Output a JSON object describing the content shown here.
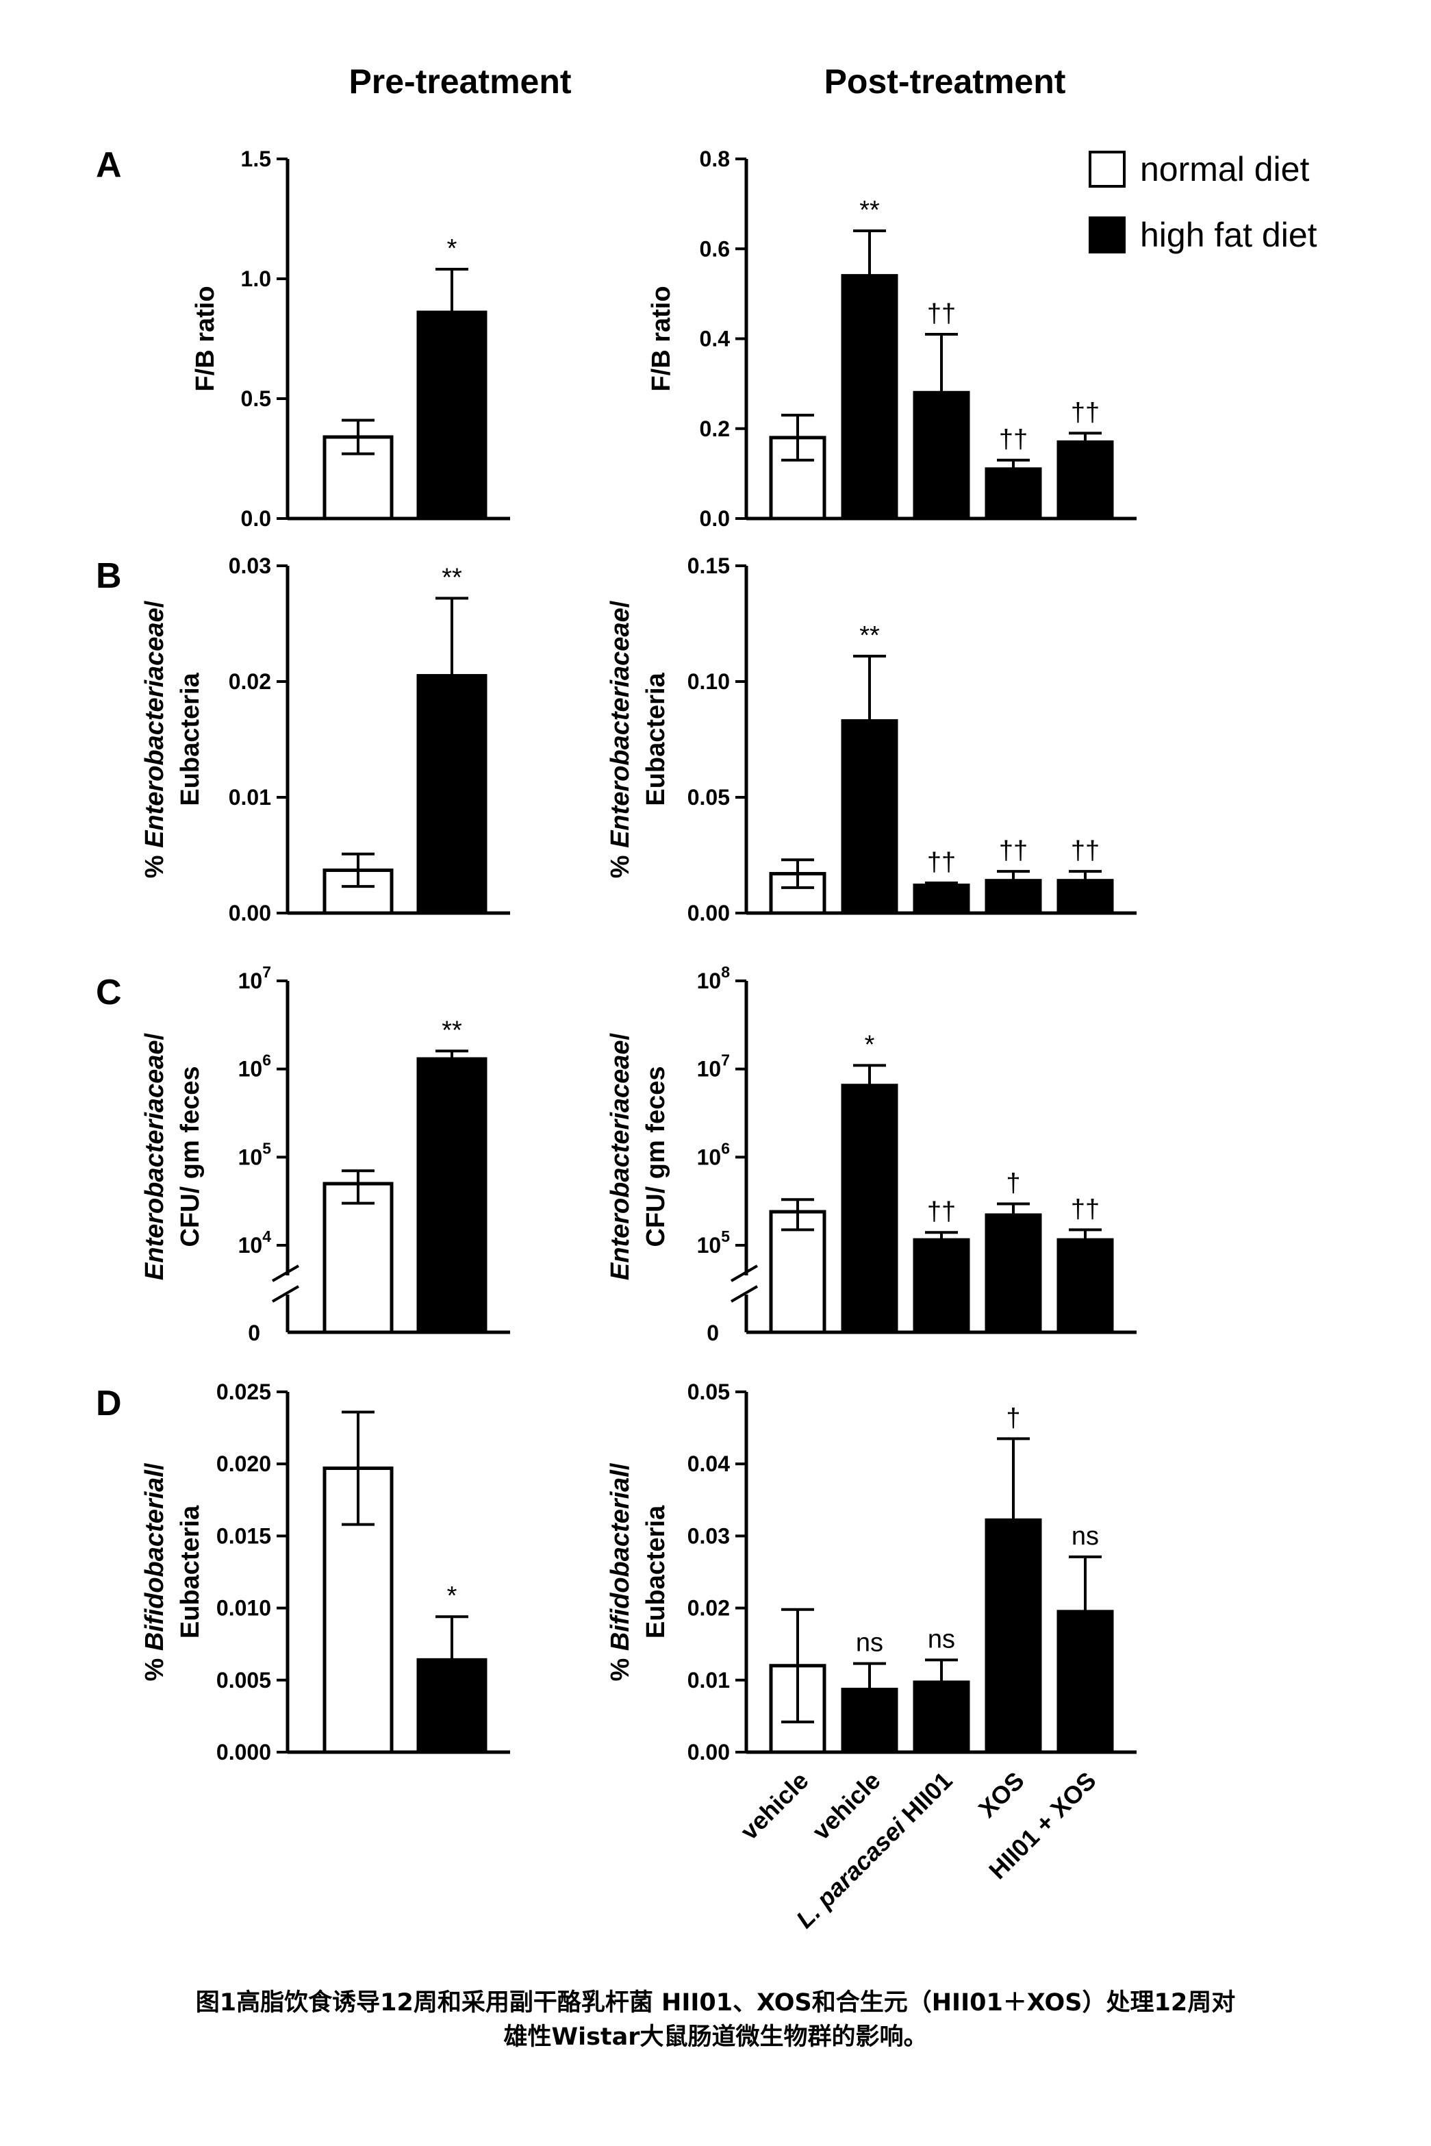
{
  "column_titles": [
    "Pre-treatment",
    "Post-treatment"
  ],
  "legend": [
    {
      "label": "normal diet",
      "color": "#ffffff"
    },
    {
      "label": "high fat diet",
      "color": "#000000"
    }
  ],
  "x_categories": [
    {
      "parts": [
        {
          "t": "vehicle",
          "i": false
        }
      ]
    },
    {
      "parts": [
        {
          "t": "vehicle",
          "i": false
        }
      ]
    },
    {
      "parts": [
        {
          "t": "L. paracasei ",
          "i": true
        },
        {
          "t": "HII01",
          "i": false
        }
      ]
    },
    {
      "parts": [
        {
          "t": "XOS",
          "i": false
        }
      ]
    },
    {
      "parts": [
        {
          "t": "HII01 + XOS",
          "i": false
        }
      ]
    }
  ],
  "caption": [
    "图1高脂饮食诱导12周和采用副干酪乳杆菌 HII01、XOS和合生元（HII01＋XOS）处理12周对",
    "雄性Wistar大鼠肠道微生物群的影响。"
  ],
  "chart_data": [
    {
      "type": "bar",
      "panel": "A",
      "column": "Pre-treatment",
      "ylabel": [
        "F/B ratio"
      ],
      "scale": "linear",
      "ylim": [
        0,
        1.5
      ],
      "yticks": [
        "0.0",
        "0.5",
        "1.0",
        "1.5"
      ],
      "ytick_values": [
        0,
        0.5,
        1.0,
        1.5
      ],
      "values": [
        0.34,
        0.86
      ],
      "errors": [
        0.07,
        0.18
      ],
      "annotations": [
        "",
        "*"
      ],
      "fills": [
        "white",
        "black"
      ]
    },
    {
      "type": "bar",
      "panel": "A",
      "column": "Post-treatment",
      "ylabel": [
        "F/B ratio"
      ],
      "scale": "linear",
      "ylim": [
        0,
        0.8
      ],
      "yticks": [
        "0.0",
        "0.2",
        "0.4",
        "0.6",
        "0.8"
      ],
      "ytick_values": [
        0,
        0.2,
        0.4,
        0.6,
        0.8
      ],
      "values": [
        0.18,
        0.54,
        0.28,
        0.11,
        0.17
      ],
      "errors": [
        0.05,
        0.1,
        0.13,
        0.02,
        0.02
      ],
      "annotations": [
        "",
        "**",
        "††",
        "††",
        "††"
      ],
      "fills": [
        "white",
        "black",
        "black",
        "black",
        "black"
      ]
    },
    {
      "type": "bar",
      "panel": "B",
      "column": "Pre-treatment",
      "ylabel": [
        [
          {
            "t": "% ",
            "i": false
          },
          {
            "t": "Enterobacteriaceae",
            "i": true
          },
          {
            "t": "/",
            "i": false
          }
        ],
        [
          {
            "t": "Eubacteria",
            "i": false
          }
        ]
      ],
      "scale": "linear",
      "ylim": [
        0,
        0.03
      ],
      "yticks": [
        "0.00",
        "0.01",
        "0.02",
        "0.03"
      ],
      "ytick_values": [
        0,
        0.01,
        0.02,
        0.03
      ],
      "values": [
        0.0037,
        0.0205
      ],
      "errors": [
        0.0014,
        0.0067
      ],
      "annotations": [
        "",
        "**"
      ],
      "fills": [
        "white",
        "black"
      ]
    },
    {
      "type": "bar",
      "panel": "B",
      "column": "Post-treatment",
      "ylabel": [
        [
          {
            "t": "% ",
            "i": false
          },
          {
            "t": "Enterobacteriaceae",
            "i": true
          },
          {
            "t": "/",
            "i": false
          }
        ],
        [
          {
            "t": "Eubacteria",
            "i": false
          }
        ]
      ],
      "scale": "linear",
      "ylim": [
        0,
        0.15
      ],
      "yticks": [
        "0.00",
        "0.05",
        "0.10",
        "0.15"
      ],
      "ytick_values": [
        0,
        0.05,
        0.1,
        0.15
      ],
      "values": [
        0.017,
        0.083,
        0.012,
        0.014,
        0.014
      ],
      "errors": [
        0.006,
        0.028,
        0.001,
        0.004,
        0.004
      ],
      "annotations": [
        "",
        "**",
        "††",
        "††",
        "††"
      ],
      "fills": [
        "white",
        "black",
        "black",
        "black",
        "black"
      ]
    },
    {
      "type": "bar",
      "panel": "C",
      "column": "Pre-treatment",
      "ylabel": [
        [
          {
            "t": "Enterobacteriaceae",
            "i": true
          },
          {
            "t": "/",
            "i": false
          }
        ],
        [
          {
            "t": "CFU/ gm feces",
            "i": false
          }
        ]
      ],
      "scale": "log",
      "ylim": [
        10000,
        10000000
      ],
      "axis_break": true,
      "zero_label": "0",
      "yticks": [
        {
          "b": "10",
          "e": "4"
        },
        {
          "b": "10",
          "e": "5"
        },
        {
          "b": "10",
          "e": "6"
        },
        {
          "b": "10",
          "e": "7"
        }
      ],
      "ytick_values": [
        10000,
        100000,
        1000000,
        10000000
      ],
      "values": [
        50000,
        1300000
      ],
      "errors": [
        20000,
        300000
      ],
      "annotations": [
        "",
        "**"
      ],
      "fills": [
        "white",
        "black"
      ]
    },
    {
      "type": "bar",
      "panel": "C",
      "column": "Post-treatment",
      "ylabel": [
        [
          {
            "t": "Enterobacteriaceae",
            "i": true
          },
          {
            "t": "/",
            "i": false
          }
        ],
        [
          {
            "t": "CFU/ gm feces",
            "i": false
          }
        ]
      ],
      "scale": "log",
      "ylim": [
        100000,
        100000000
      ],
      "axis_break": true,
      "zero_label": "0",
      "yticks": [
        {
          "b": "10",
          "e": "5"
        },
        {
          "b": "10",
          "e": "6"
        },
        {
          "b": "10",
          "e": "7"
        },
        {
          "b": "10",
          "e": "8"
        }
      ],
      "ytick_values": [
        100000,
        1000000,
        10000000,
        100000000
      ],
      "values": [
        240000,
        6500000,
        115000,
        220000,
        115000
      ],
      "errors": [
        90000,
        4500000,
        25000,
        75000,
        35000
      ],
      "annotations": [
        "",
        "*",
        "††",
        "†",
        "††"
      ],
      "fills": [
        "white",
        "black",
        "black",
        "black",
        "black"
      ]
    },
    {
      "type": "bar",
      "panel": "D",
      "column": "Pre-treatment",
      "ylabel": [
        [
          {
            "t": "% ",
            "i": false
          },
          {
            "t": "Bifidobacterial",
            "i": true
          },
          {
            "t": "/",
            "i": false
          }
        ],
        [
          {
            "t": "Eubacteria",
            "i": false
          }
        ]
      ],
      "scale": "linear",
      "ylim": [
        0,
        0.025
      ],
      "yticks": [
        "0.000",
        "0.005",
        "0.010",
        "0.015",
        "0.020",
        "0.025"
      ],
      "ytick_values": [
        0,
        0.005,
        0.01,
        0.015,
        0.02,
        0.025
      ],
      "values": [
        0.0197,
        0.0064
      ],
      "errors": [
        0.0039,
        0.003
      ],
      "annotations": [
        "",
        "*"
      ],
      "fills": [
        "white",
        "black"
      ]
    },
    {
      "type": "bar",
      "panel": "D",
      "column": "Post-treatment",
      "ylabel": [
        [
          {
            "t": "% ",
            "i": false
          },
          {
            "t": "Bifidobacterial",
            "i": true
          },
          {
            "t": "/",
            "i": false
          }
        ],
        [
          {
            "t": "Eubacteria",
            "i": false
          }
        ]
      ],
      "scale": "linear",
      "ylim": [
        0,
        0.05
      ],
      "yticks": [
        "0.00",
        "0.01",
        "0.02",
        "0.03",
        "0.04",
        "0.05"
      ],
      "ytick_values": [
        0,
        0.01,
        0.02,
        0.03,
        0.04,
        0.05
      ],
      "values": [
        0.012,
        0.0087,
        0.0097,
        0.0322,
        0.0195
      ],
      "errors": [
        0.0078,
        0.0036,
        0.0031,
        0.0113,
        0.0076
      ],
      "annotations": [
        "",
        "ns",
        "ns",
        "†",
        "ns"
      ],
      "fills": [
        "white",
        "black",
        "black",
        "black",
        "black"
      ]
    }
  ]
}
